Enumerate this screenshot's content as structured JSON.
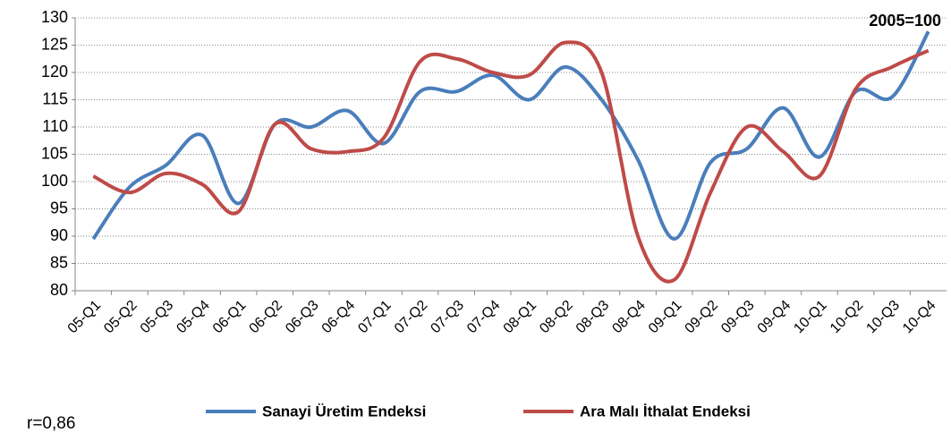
{
  "chart_data": {
    "type": "line",
    "categories": [
      "05-Q1",
      "05-Q2",
      "05-Q3",
      "05-Q4",
      "06-Q1",
      "06-Q2",
      "06-Q3",
      "06-Q4",
      "07-Q1",
      "07-Q2",
      "07-Q3",
      "07-Q4",
      "08-Q1",
      "08-Q2",
      "08-Q3",
      "08-Q4",
      "09-Q1",
      "09-Q2",
      "09-Q3",
      "09-Q4",
      "10-Q1",
      "10-Q2",
      "10-Q3",
      "10-Q4"
    ],
    "series": [
      {
        "name": "Sanayi Üretim Endeksi",
        "color": "#4a7ebb",
        "values": [
          89.5,
          99,
          103,
          108.5,
          96,
          110.5,
          110,
          113,
          107,
          116.5,
          116.5,
          119.5,
          115,
          121,
          115,
          104,
          89.5,
          103.5,
          106,
          113.5,
          104.5,
          116.5,
          115.5,
          127.5
        ]
      },
      {
        "name": "Ara Malı İthalat Endeksi",
        "color": "#be4b48",
        "values": [
          101,
          98,
          101.5,
          99.5,
          94.5,
          110.5,
          106,
          105.5,
          108,
          122,
          122.5,
          120,
          119.5,
          125.5,
          120,
          90,
          82,
          98,
          110,
          105.5,
          101,
          117,
          121,
          124
        ]
      }
    ],
    "ylim": [
      80,
      130
    ],
    "yticks": [
      80,
      85,
      90,
      95,
      100,
      105,
      110,
      115,
      120,
      125,
      130
    ],
    "grid": true,
    "annotations": [
      "2005=100",
      "r=0,86"
    ]
  }
}
